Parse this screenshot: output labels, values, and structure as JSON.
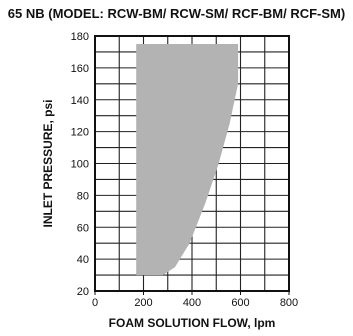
{
  "chart_data": {
    "type": "area",
    "title": "65 NB (MODEL: RCW-BM/ RCW-SM/ RCF-BM/ RCF-SM)",
    "xlabel": "FOAM SOLUTION FLOW, lpm",
    "ylabel": "INLET PRESSURE, psi",
    "xlim": [
      0,
      800
    ],
    "ylim": [
      20,
      180
    ],
    "x_ticks": [
      "0",
      "200",
      "400",
      "600",
      "800"
    ],
    "y_ticks": [
      "20",
      "40",
      "60",
      "80",
      "100",
      "120",
      "140",
      "160",
      "180"
    ],
    "grid": true,
    "fill_color": "#b3b3b3",
    "region": [
      {
        "x": 170,
        "y": 175
      },
      {
        "x": 590,
        "y": 175
      },
      {
        "x": 590,
        "y": 150
      },
      {
        "x": 555,
        "y": 125
      },
      {
        "x": 510,
        "y": 100
      },
      {
        "x": 455,
        "y": 75
      },
      {
        "x": 390,
        "y": 50
      },
      {
        "x": 330,
        "y": 35
      },
      {
        "x": 280,
        "y": 30
      },
      {
        "x": 170,
        "y": 30
      }
    ]
  }
}
